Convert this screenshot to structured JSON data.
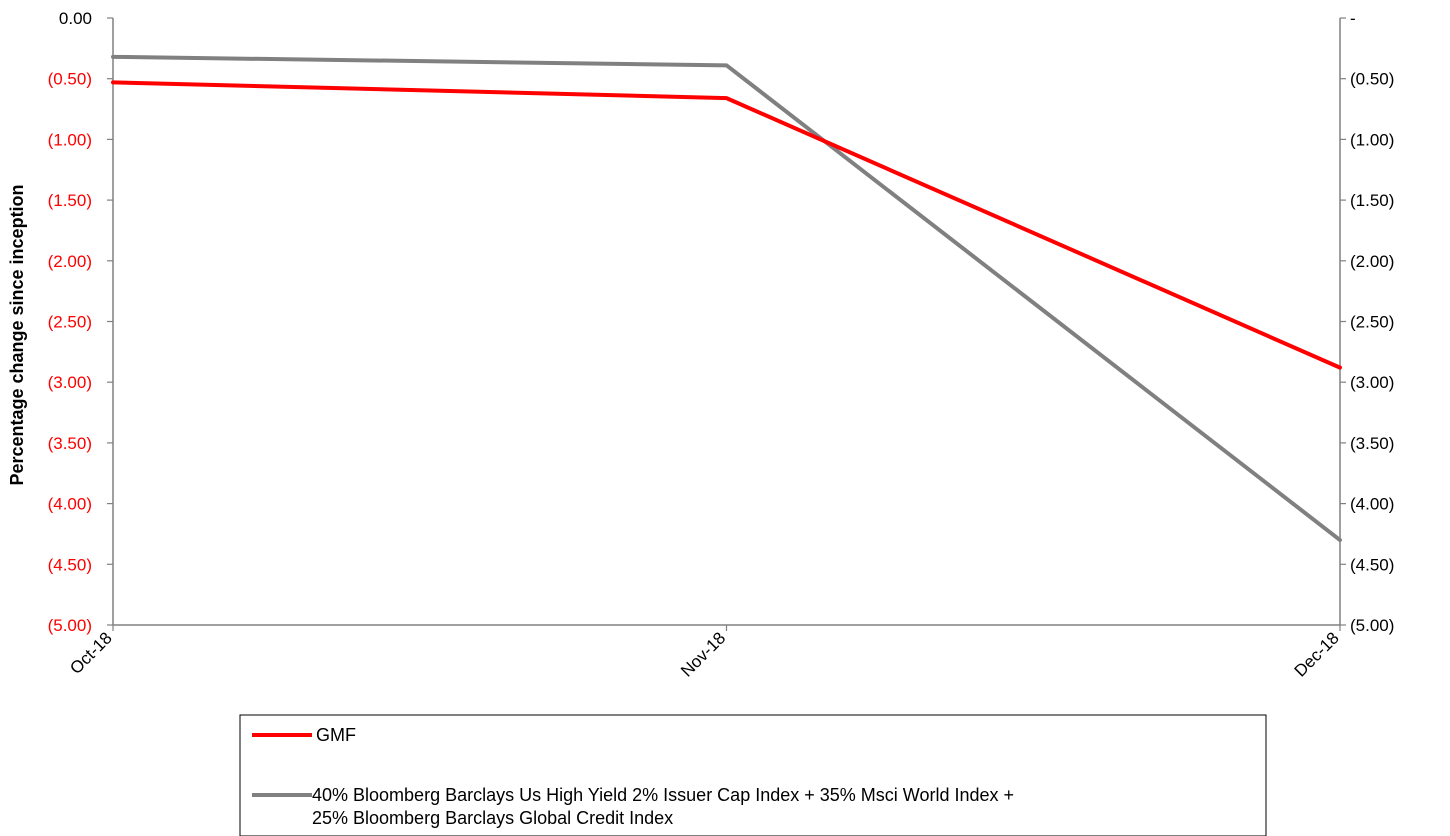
{
  "chart_data": {
    "type": "line",
    "x": [
      "Oct-18",
      "Nov-18",
      "Dec-18"
    ],
    "series": [
      {
        "name": "GMF",
        "color": "#FF0000",
        "axis": "left",
        "values": [
          -0.53,
          -0.66,
          -2.88
        ]
      },
      {
        "name": "40% Bloomberg Barclays Us High Yield 2% Issuer Cap Index  + 35% Msci World Index + 25% Bloomberg Barclays Global Credit Index",
        "legend_lines": [
          "40% Bloomberg Barclays Us High Yield 2% Issuer Cap Index  + 35% Msci World Index +",
          "25% Bloomberg Barclays Global Credit Index"
        ],
        "color": "#808080",
        "axis": "right",
        "values": [
          -0.32,
          -0.39,
          -4.3
        ]
      }
    ],
    "ylabel": "Percentage change since inception",
    "ylim": [
      -5.0,
      0.0
    ],
    "y_left_ticks": [
      "0.00",
      "(0.50)",
      "(1.00)",
      "(1.50)",
      "(2.00)",
      "(2.50)",
      "(3.00)",
      "(3.50)",
      "(4.00)",
      "(4.50)",
      "(5.00)"
    ],
    "y_right_ticks": [
      "-",
      "(0.50)",
      "(1.00)",
      "(1.50)",
      "(2.00)",
      "(2.50)",
      "(3.00)",
      "(3.50)",
      "(4.00)",
      "(4.50)",
      "(5.00)"
    ],
    "y_left_tick_colors": {
      "first": "#000000",
      "rest": "#FF0000"
    },
    "y_right_tick_color": "#000000",
    "grid": false,
    "legend_position": "bottom"
  }
}
